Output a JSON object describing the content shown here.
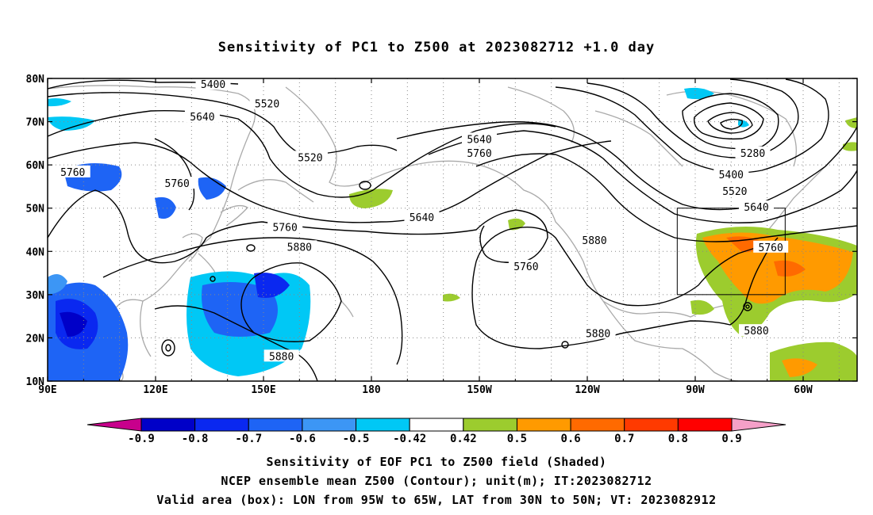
{
  "title": "Sensitivity of PC1 to Z500 at 2023082712 +1.0 day",
  "map": {
    "lat_ticks": [
      "80N",
      "70N",
      "60N",
      "50N",
      "40N",
      "30N",
      "20N",
      "10N"
    ],
    "lon_ticks": [
      "90E",
      "120E",
      "150E",
      "180",
      "150W",
      "120W",
      "90W",
      "60W"
    ],
    "contour_labels": [
      {
        "text": "5400",
        "lon": 136,
        "lat": 78.7
      },
      {
        "text": "5520",
        "lon": 151,
        "lat": 74.2
      },
      {
        "text": "5640",
        "lon": 133,
        "lat": 71.2
      },
      {
        "text": "5520",
        "lon": -197,
        "lat": 61.8
      },
      {
        "text": "5640",
        "lon": -150,
        "lat": 66.0
      },
      {
        "text": "5760",
        "lon": -150,
        "lat": 62.8
      },
      {
        "text": "5640",
        "lon": -166,
        "lat": 47.9
      },
      {
        "text": "5280",
        "lon": -74,
        "lat": 62.8
      },
      {
        "text": "5400",
        "lon": -80,
        "lat": 57.8
      },
      {
        "text": "5520",
        "lon": -79,
        "lat": 54.0
      },
      {
        "text": "5640",
        "lon": -73,
        "lat": 50.3
      },
      {
        "text": "5760",
        "lon": -69,
        "lat": 41.0
      },
      {
        "text": "5760",
        "lon": 97,
        "lat": 58.4
      },
      {
        "text": "5760",
        "lon": 126,
        "lat": 55.8
      },
      {
        "text": "5760",
        "lon": 156,
        "lat": 45.6
      },
      {
        "text": "5880",
        "lon": 160,
        "lat": 41.1
      },
      {
        "text": "5760",
        "lon": -137,
        "lat": 36.6
      },
      {
        "text": "5880",
        "lon": -118,
        "lat": 42.6
      },
      {
        "text": "5880",
        "lon": -117,
        "lat": 21.1
      },
      {
        "text": "5880",
        "lon": -73,
        "lat": 21.7
      },
      {
        "text": "5880",
        "lon": 155,
        "lat": 15.8
      }
    ]
  },
  "valid_box": {
    "lon_min": -95,
    "lon_max": -65,
    "lat_min": 30,
    "lat_max": 50
  },
  "colorbar": {
    "labels": [
      "-0.9",
      "-0.8",
      "-0.7",
      "-0.6",
      "-0.5",
      "-0.42",
      "0.42",
      "0.5",
      "0.6",
      "0.7",
      "0.8",
      "0.9"
    ],
    "colors": [
      "#0000c8",
      "#0a28f0",
      "#1e64f5",
      "#3c96f5",
      "#00c8f5",
      "#ffffff",
      "#9ccc2e",
      "#ff9a00",
      "#ff6a00",
      "#ff3a00",
      "#ff0000"
    ],
    "low_end_color": "#c8008c",
    "high_end_color": "#f5a0c8"
  },
  "captions": [
    "Sensitivity of EOF PC1 to Z500 field (Shaded)",
    "NCEP ensemble mean Z500 (Contour); unit(m); IT:2023082712",
    "Valid area (box): LON from 95W to 65W, LAT from 30N to 50N; VT: 2023082912"
  ]
}
